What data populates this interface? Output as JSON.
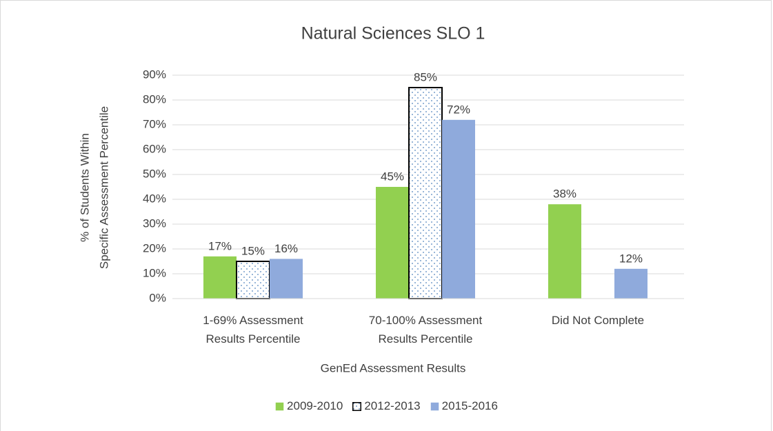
{
  "chart_data": {
    "type": "bar",
    "title": "Natural Sciences SLO 1",
    "xlabel": "GenEd Assessment Results",
    "ylabel": [
      "% of Students Within",
      "Specific Assessment Percentile"
    ],
    "categories": [
      "1-69% Assessment Results Percentile",
      "70-100% Assessment Results Percentile",
      "Did Not Complete"
    ],
    "series": [
      {
        "name": "2009-2010",
        "color": "#92d050",
        "values": [
          17,
          45,
          38
        ],
        "value_labels": [
          "17%",
          "45%",
          "38%"
        ]
      },
      {
        "name": "2012-2013",
        "color": "#ffffff",
        "pattern": "dots",
        "edgecolor": "#000000",
        "values": [
          15,
          85,
          null
        ],
        "value_labels": [
          "15%",
          "85%",
          null
        ]
      },
      {
        "name": "2015-2016",
        "color": "#8faadc",
        "values": [
          16,
          72,
          12
        ],
        "value_labels": [
          "16%",
          "72%",
          "12%"
        ]
      }
    ],
    "ylim": [
      0,
      90
    ],
    "yticks": [
      {
        "value": 0,
        "label": "0%"
      },
      {
        "value": 10,
        "label": "10%"
      },
      {
        "value": 20,
        "label": "20%"
      },
      {
        "value": 30,
        "label": "30%"
      },
      {
        "value": 40,
        "label": "40%"
      },
      {
        "value": 50,
        "label": "50%"
      },
      {
        "value": 60,
        "label": "60%"
      },
      {
        "value": 70,
        "label": "70%"
      },
      {
        "value": 80,
        "label": "80%"
      },
      {
        "value": 90,
        "label": "90%"
      }
    ],
    "grid": true,
    "legend": "bottom"
  }
}
